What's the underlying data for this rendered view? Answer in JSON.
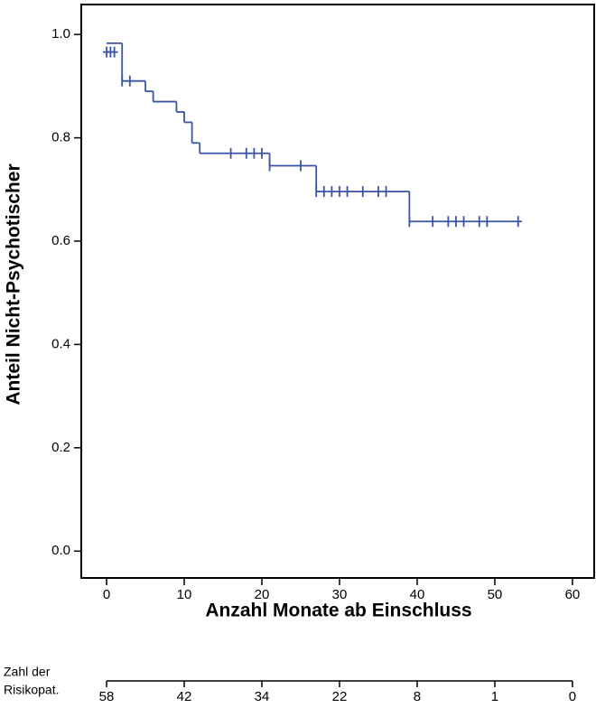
{
  "chart_data": {
    "type": "kaplan-meier",
    "y_label": "Anteil Nicht-Psychotischer",
    "x_label": "Anzahl Monate ab Einschluss",
    "color": "#3b54a5",
    "xlim": [
      -3.26,
      62.8
    ],
    "ylim": [
      -0.052,
      1.058
    ],
    "xticks": [
      0,
      10,
      20,
      30,
      40,
      50,
      60
    ],
    "yticks": [
      {
        "value": 0,
        "label": "0.0"
      },
      0.2,
      0.4,
      0.6,
      0.8,
      {
        "value": 1,
        "label": "1.0"
      }
    ],
    "steps": {
      "x": [
        0,
        2,
        5,
        6,
        9,
        10,
        11,
        12,
        21,
        27,
        39
      ],
      "y": [
        0.983,
        0.91,
        0.89,
        0.87,
        0.85,
        0.83,
        0.79,
        0.77,
        0.746,
        0.696,
        0.638
      ],
      "end": 53.5
    },
    "censored": [
      {
        "y": 0.966,
        "x": [
          0,
          0.5,
          1
        ]
      },
      {
        "y": 0.91,
        "x": [
          2,
          3
        ]
      },
      {
        "y": 0.77,
        "x": [
          16,
          18,
          19,
          20
        ]
      },
      {
        "y": 0.746,
        "x": [
          21,
          25
        ]
      },
      {
        "y": 0.696,
        "x": [
          27,
          28,
          29,
          30,
          31,
          33,
          35,
          36
        ]
      },
      {
        "y": 0.638,
        "x": [
          39,
          42,
          44,
          45,
          46,
          48,
          49,
          53
        ]
      }
    ],
    "risk_table": {
      "label": [
        "Zahl der",
        "Risikopat."
      ],
      "values": [
        58,
        42,
        34,
        22,
        8,
        1,
        0
      ]
    }
  }
}
